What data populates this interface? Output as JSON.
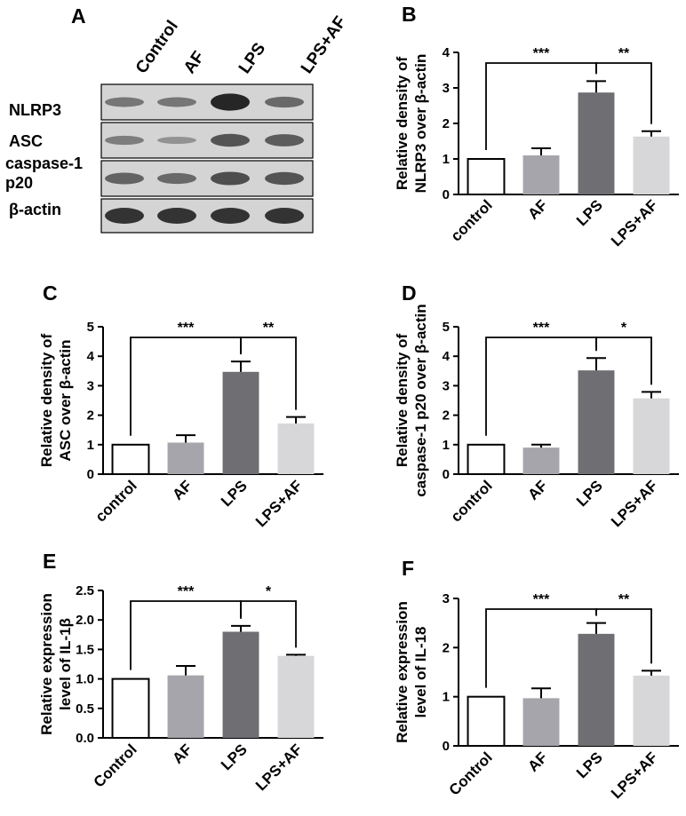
{
  "panel_a": {
    "letter": "A",
    "columns": [
      "Control",
      "AF",
      "LPS",
      "LPS+AF"
    ],
    "rows": [
      {
        "label": "NLRP3",
        "intensity": [
          0.35,
          0.35,
          0.95,
          0.45
        ]
      },
      {
        "label": "ASC",
        "intensity": [
          0.3,
          0.15,
          0.6,
          0.55
        ]
      },
      {
        "label": "caspase-1\np20",
        "intensity": [
          0.5,
          0.45,
          0.65,
          0.6
        ]
      },
      {
        "label": "β-actin",
        "intensity": [
          0.85,
          0.85,
          0.85,
          0.85
        ]
      }
    ]
  },
  "chart_data": [
    {
      "panel": "B",
      "type": "bar",
      "categories": [
        "control",
        "AF",
        "LPS",
        "LPS+AF"
      ],
      "values": [
        1.0,
        1.1,
        2.87,
        1.63
      ],
      "errors": [
        0,
        0.2,
        0.32,
        0.15
      ],
      "ylabel": [
        "Relative density of",
        "NLRP3 over β-actin"
      ],
      "ylim": [
        0,
        4
      ],
      "yticks": [
        "0",
        "1",
        "2",
        "3",
        "4"
      ],
      "significance": [
        {
          "from": 0,
          "to": 2,
          "label": "***"
        },
        {
          "from": 2,
          "to": 3,
          "label": "**"
        }
      ]
    },
    {
      "panel": "C",
      "type": "bar",
      "categories": [
        "control",
        "AF",
        "LPS",
        "LPS+AF"
      ],
      "values": [
        1.0,
        1.07,
        3.47,
        1.72
      ],
      "errors": [
        0,
        0.25,
        0.35,
        0.22
      ],
      "ylabel": [
        "Relative density of",
        "ASC over β-actin"
      ],
      "ylim": [
        0,
        5
      ],
      "yticks": [
        "0",
        "1",
        "2",
        "3",
        "4",
        "5"
      ],
      "significance": [
        {
          "from": 0,
          "to": 2,
          "label": "***"
        },
        {
          "from": 2,
          "to": 3,
          "label": "**"
        }
      ]
    },
    {
      "panel": "D",
      "type": "bar",
      "categories": [
        "control",
        "AF",
        "LPS",
        "LPS+AF"
      ],
      "values": [
        1.0,
        0.9,
        3.52,
        2.57
      ],
      "errors": [
        0,
        0.1,
        0.42,
        0.22
      ],
      "ylabel": [
        "Relative density of",
        "caspase-1 p20 over β-actin"
      ],
      "ylim": [
        0,
        5
      ],
      "yticks": [
        "0",
        "1",
        "2",
        "3",
        "4",
        "5"
      ],
      "significance": [
        {
          "from": 0,
          "to": 2,
          "label": "***"
        },
        {
          "from": 2,
          "to": 3,
          "label": "*"
        }
      ]
    },
    {
      "panel": "E",
      "type": "bar",
      "categories": [
        "Control",
        "AF",
        "LPS",
        "LPS+AF"
      ],
      "values": [
        1.0,
        1.06,
        1.8,
        1.39
      ],
      "errors": [
        0,
        0.16,
        0.1,
        0.02
      ],
      "ylabel": [
        "Relative expression",
        "level of IL-1β"
      ],
      "ylim": [
        0,
        2.5
      ],
      "yticks": [
        "0.0",
        "0.5",
        "1.0",
        "1.5",
        "2.0",
        "2.5"
      ],
      "significance": [
        {
          "from": 0,
          "to": 2,
          "label": "***"
        },
        {
          "from": 2,
          "to": 3,
          "label": "*"
        }
      ]
    },
    {
      "panel": "F",
      "type": "bar",
      "categories": [
        "Control",
        "AF",
        "LPS",
        "LPS+AF"
      ],
      "values": [
        1.0,
        0.97,
        2.28,
        1.43
      ],
      "errors": [
        0,
        0.2,
        0.22,
        0.1
      ],
      "ylabel": [
        "Relative expression",
        "level of IL-18"
      ],
      "ylim": [
        0,
        3
      ],
      "yticks": [
        "0",
        "1",
        "2",
        "3"
      ],
      "significance": [
        {
          "from": 0,
          "to": 2,
          "label": "***"
        },
        {
          "from": 2,
          "to": 3,
          "label": "**"
        }
      ]
    }
  ],
  "colors": {
    "bars": [
      "#ffffff",
      "#a6a5ab",
      "#6f6f73",
      "#d7d7d9"
    ],
    "outline": "#000000",
    "blot_background": "#d4d4d4",
    "band": "#1e1e1e"
  }
}
